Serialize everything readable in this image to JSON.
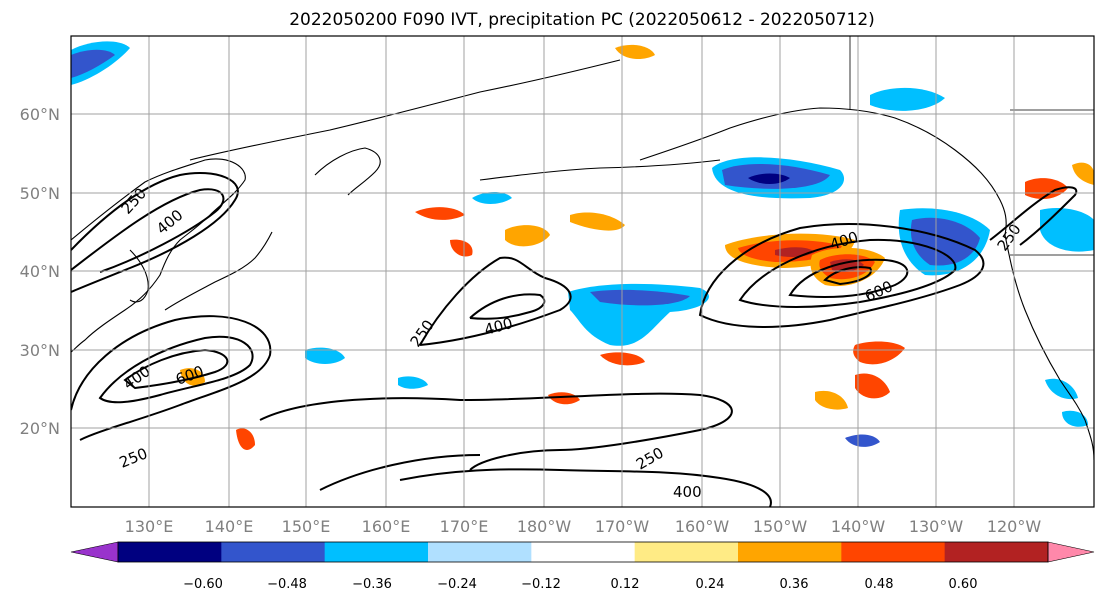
{
  "title": "2022050200 F090 IVT, precipitation PC (2022050612 - 2022050712)",
  "map": {
    "lat_labels": [
      "60°N",
      "50°N",
      "40°N",
      "30°N",
      "20°N"
    ],
    "lon_labels": [
      "130°E",
      "140°E",
      "150°E",
      "160°E",
      "170°E",
      "180°W",
      "170°W",
      "160°W",
      "150°W",
      "140°W",
      "130°W",
      "120°W"
    ],
    "contour_labels": [
      "250",
      "400",
      "250",
      "400",
      "600",
      "250",
      "400",
      "400",
      "600",
      "250",
      "250",
      "400"
    ]
  },
  "colorbar": {
    "ticks": [
      "−0.60",
      "−0.48",
      "−0.36",
      "−0.24",
      "−0.12",
      "0.12",
      "0.24",
      "0.36",
      "0.48",
      "0.60"
    ],
    "colors": [
      "#9933cc",
      "#000080",
      "#3355cc",
      "#00bfff",
      "#b0e0ff",
      "#ffffff",
      "#ffeb85",
      "#ffa500",
      "#ff4500",
      "#b22222",
      "#ff88aa"
    ]
  },
  "chart_data": {
    "type": "heatmap",
    "title": "2022050200 F090 IVT, precipitation PC (2022050612 - 2022050712)",
    "x_ticks": [
      "130°E",
      "140°E",
      "150°E",
      "160°E",
      "170°E",
      "180°W",
      "170°W",
      "160°W",
      "150°W",
      "140°W",
      "130°W",
      "120°W"
    ],
    "y_ticks": [
      "60°N",
      "50°N",
      "40°N",
      "30°N",
      "20°N"
    ],
    "extent_lon": [
      120,
      252
    ],
    "extent_lat": [
      10,
      70
    ],
    "contour_levels": [
      250,
      400,
      600
    ],
    "colorbar_levels": [
      -0.6,
      -0.48,
      -0.36,
      -0.24,
      -0.12,
      0.12,
      0.24,
      0.36,
      0.48,
      0.6
    ],
    "colorbar_extend": "both",
    "grid": true
  }
}
